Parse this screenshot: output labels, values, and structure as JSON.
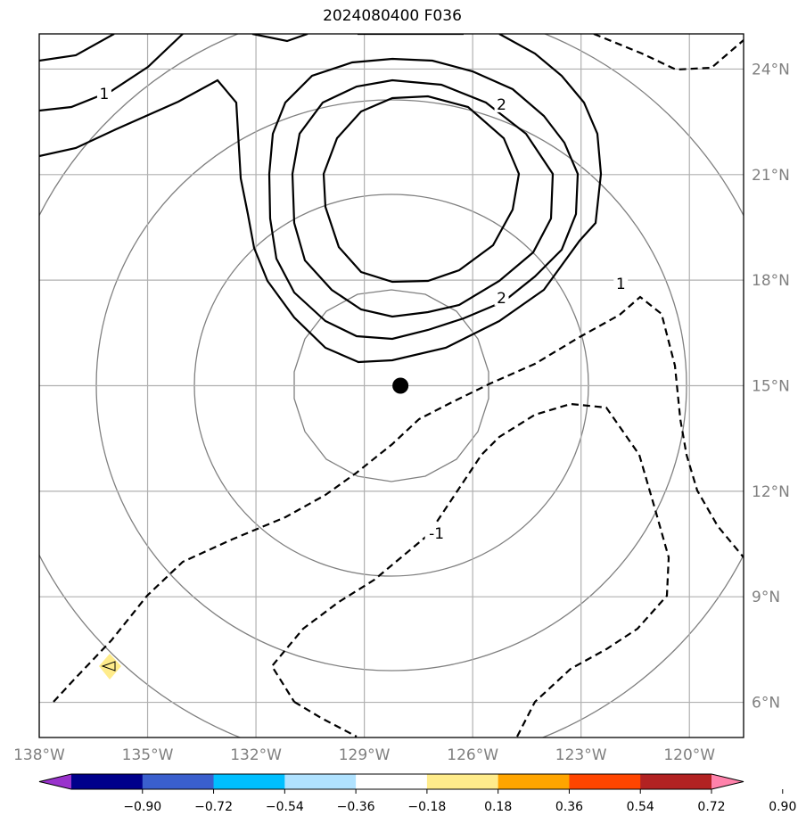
{
  "title": "2024080400 F036",
  "map": {
    "lon_range": [
      -138,
      -118.5
    ],
    "lat_range": [
      5,
      25
    ],
    "lon_ticks": [
      {
        "value": -138,
        "label": "138°W"
      },
      {
        "value": -135,
        "label": "135°W"
      },
      {
        "value": -132,
        "label": "132°W"
      },
      {
        "value": -129,
        "label": "129°W"
      },
      {
        "value": -126,
        "label": "126°W"
      },
      {
        "value": -123,
        "label": "123°W"
      },
      {
        "value": -120,
        "label": "120°W"
      }
    ],
    "lat_ticks": [
      {
        "value": 6,
        "label": "6°N"
      },
      {
        "value": 9,
        "label": "9°N"
      },
      {
        "value": 12,
        "label": "12°N"
      },
      {
        "value": 15,
        "label": "15°N"
      },
      {
        "value": 18,
        "label": "18°N"
      },
      {
        "value": 21,
        "label": "21°N"
      },
      {
        "value": 24,
        "label": "24°N"
      }
    ],
    "storm_center": {
      "lon": -128,
      "lat": 15
    },
    "contour_labels": [
      {
        "text": "1",
        "lon": -136.2,
        "lat": 23.3
      },
      {
        "text": "2",
        "lon": -125.2,
        "lat": 23.0
      },
      {
        "text": "2",
        "lon": -125.2,
        "lat": 17.5
      },
      {
        "text": "1",
        "lon": -121.9,
        "lat": 17.9
      },
      {
        "text": "-1",
        "lon": -127.0,
        "lat": 10.8
      }
    ]
  },
  "colorbar": {
    "ticks": [
      "−0.90",
      "−0.72",
      "−0.54",
      "−0.36",
      "−0.18",
      "0.18",
      "0.36",
      "0.54",
      "0.72",
      "0.90"
    ],
    "colors": [
      "#9932cc",
      "#00008b",
      "#3a5fcd",
      "#00bfff",
      "#b0e2ff",
      "#ffffff",
      "#ffec8b",
      "#ffa500",
      "#ff4500",
      "#b22222",
      "#ff82ab"
    ]
  }
}
